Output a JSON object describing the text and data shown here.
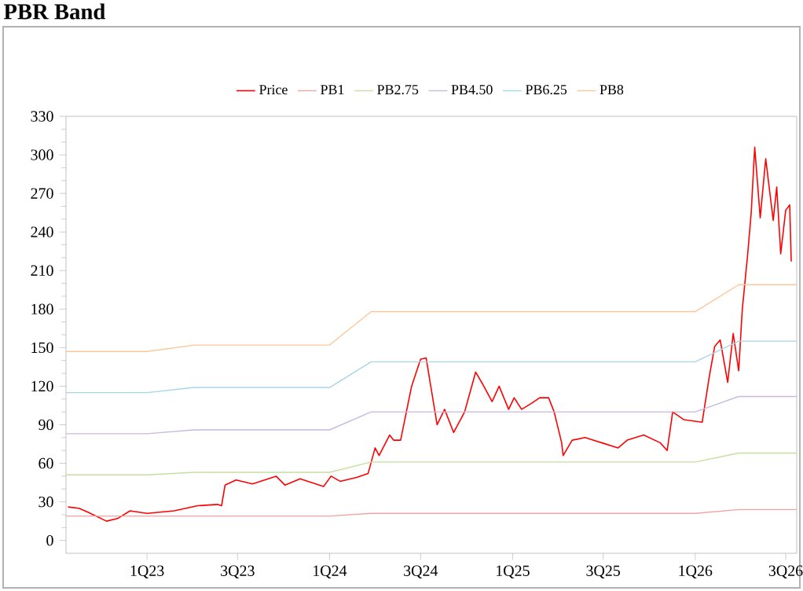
{
  "chart_data": {
    "type": "line",
    "title": "PBR Band",
    "xlim": [
      "2022-07-23",
      "2026-07-23"
    ],
    "ylim": [
      -10,
      330
    ],
    "xticks": [
      {
        "value": "2023-01-01",
        "label": "1Q23"
      },
      {
        "value": "2023-07-01",
        "label": "3Q23"
      },
      {
        "value": "2024-01-01",
        "label": "1Q24"
      },
      {
        "value": "2024-07-01",
        "label": "3Q24"
      },
      {
        "value": "2025-01-01",
        "label": "1Q25"
      },
      {
        "value": "2025-07-01",
        "label": "3Q25"
      },
      {
        "value": "2026-01-01",
        "label": "1Q26"
      },
      {
        "value": "2026-07-01",
        "label": "3Q26"
      }
    ],
    "yticks": [
      0,
      30,
      60,
      90,
      120,
      150,
      180,
      210,
      240,
      270,
      300,
      330
    ],
    "legend": "top",
    "grid": false,
    "marker": "none",
    "line_style": "solid",
    "series": [
      {
        "name": "Price",
        "color": "#ff0000",
        "x": [
          "2022-07-27",
          "2022-08-18",
          "2022-09-05",
          "2022-10-12",
          "2022-11-03",
          "2022-11-28",
          "2023-01-01",
          "2023-02-24",
          "2023-04-12",
          "2023-05-22",
          "2023-05-30",
          "2023-06-06",
          "2023-06-28",
          "2023-07-31",
          "2023-09-16",
          "2023-10-04",
          "2023-11-03",
          "2023-12-20",
          "2024-01-04",
          "2024-01-22",
          "2024-02-24",
          "2024-03-18",
          "2024-04-01",
          "2024-04-09",
          "2024-04-30",
          "2024-05-08",
          "2024-05-22",
          "2024-06-13",
          "2024-07-01",
          "2024-07-12",
          "2024-08-03",
          "2024-08-18",
          "2024-09-05",
          "2024-09-27",
          "2024-10-19",
          "2024-11-03",
          "2024-11-21",
          "2024-12-05",
          "2024-12-24",
          "2025-01-04",
          "2025-01-19",
          "2025-02-09",
          "2025-02-24",
          "2025-03-14",
          "2025-03-25",
          "2025-04-09",
          "2025-04-12",
          "2025-04-30",
          "2025-05-26",
          "2025-06-28",
          "2025-07-31",
          "2025-08-18",
          "2025-09-20",
          "2025-10-23",
          "2025-11-06",
          "2025-11-17",
          "2025-12-09",
          "2026-01-15",
          "2026-01-29",
          "2026-02-09",
          "2026-02-20",
          "2026-03-07",
          "2026-03-18",
          "2026-03-29",
          "2026-04-05",
          "2026-04-16",
          "2026-04-23",
          "2026-04-30",
          "2026-05-11",
          "2026-05-22",
          "2026-06-06",
          "2026-06-13",
          "2026-06-21",
          "2026-07-01",
          "2026-07-09",
          "2026-07-12"
        ],
        "values": [
          26,
          25,
          22,
          15,
          17,
          23,
          21,
          23,
          27,
          28,
          27,
          43,
          47,
          44,
          50,
          43,
          48,
          42,
          50,
          46,
          49,
          52,
          72,
          66,
          82,
          78,
          78,
          120,
          141,
          142,
          90,
          102,
          84,
          100,
          131,
          121,
          108,
          120,
          102,
          111,
          102,
          107,
          111,
          111,
          100,
          76,
          66,
          78,
          80,
          76,
          72,
          78,
          82,
          76,
          70,
          100,
          94,
          92,
          127,
          151,
          156,
          123,
          161,
          132,
          179,
          223,
          255,
          306,
          251,
          297,
          249,
          275,
          223,
          257,
          261,
          217
        ]
      },
      {
        "name": "PB1",
        "color": "#f2a3a3",
        "x": [
          "2022-07-23",
          "2023-01-01",
          "2023-04-05",
          "2024-01-01",
          "2024-03-24",
          "2026-01-01",
          "2026-03-29",
          "2026-07-23"
        ],
        "values": [
          19,
          19,
          19,
          19,
          21,
          21,
          24,
          24
        ]
      },
      {
        "name": "PB2.75",
        "color": "#c4dfa0",
        "x": [
          "2022-07-23",
          "2023-01-01",
          "2023-04-05",
          "2024-01-01",
          "2024-03-24",
          "2026-01-01",
          "2026-03-29",
          "2026-07-23"
        ],
        "values": [
          51,
          51,
          53,
          53,
          61,
          61,
          68,
          68
        ]
      },
      {
        "name": "PB4.50",
        "color": "#c9b8e0",
        "x": [
          "2022-07-23",
          "2023-01-01",
          "2023-04-05",
          "2024-01-01",
          "2024-03-24",
          "2026-01-01",
          "2026-03-29",
          "2026-07-23"
        ],
        "values": [
          83,
          83,
          86,
          86,
          100,
          100,
          112,
          112
        ]
      },
      {
        "name": "PB6.25",
        "color": "#a6d6e8",
        "x": [
          "2022-07-23",
          "2023-01-01",
          "2023-04-05",
          "2024-01-01",
          "2024-03-24",
          "2026-01-01",
          "2026-03-29",
          "2026-07-23"
        ],
        "values": [
          115,
          115,
          119,
          119,
          139,
          139,
          155,
          155
        ]
      },
      {
        "name": "PB8",
        "color": "#fbc79a",
        "x": [
          "2022-07-23",
          "2023-01-01",
          "2023-04-05",
          "2024-01-01",
          "2024-03-24",
          "2026-01-01",
          "2026-03-29",
          "2026-07-23"
        ],
        "values": [
          147,
          147,
          152,
          152,
          178,
          178,
          199,
          199
        ]
      }
    ]
  }
}
